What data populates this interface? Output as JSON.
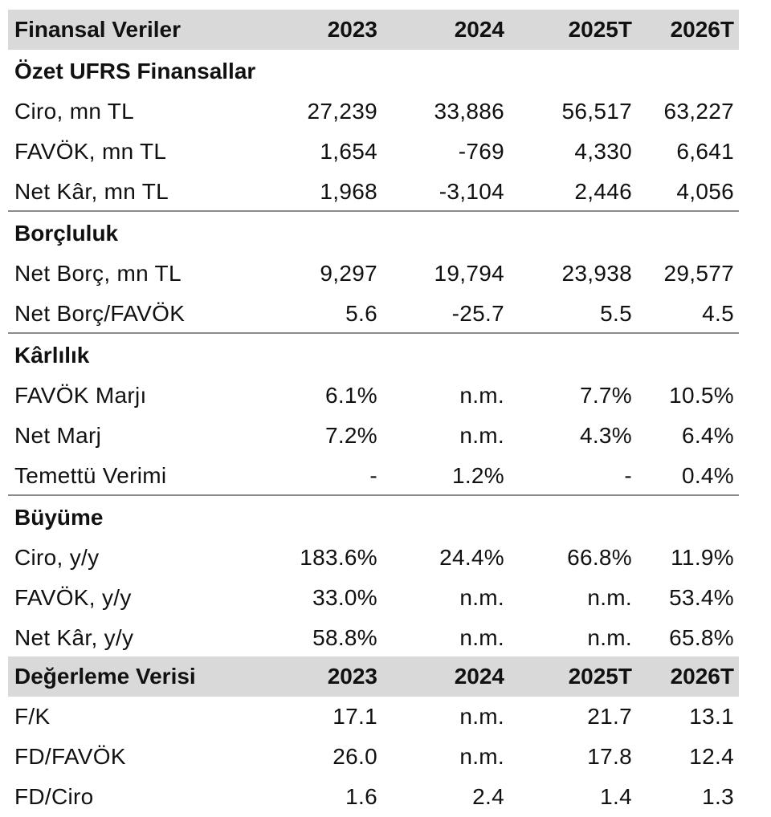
{
  "header": {
    "title": "Finansal Veriler",
    "years": [
      "2023",
      "2024",
      "2025T",
      "2026T"
    ]
  },
  "sections": [
    {
      "title": "Özet UFRS Finansallar",
      "rows": [
        {
          "label": "Ciro, mn TL",
          "values": [
            "27,239",
            "33,886",
            "56,517",
            "63,227"
          ]
        },
        {
          "label": "FAVÖK, mn TL",
          "values": [
            "1,654",
            "-769",
            "4,330",
            "6,641"
          ]
        },
        {
          "label": "Net Kâr, mn TL",
          "values": [
            "1,968",
            "-3,104",
            "2,446",
            "4,056"
          ]
        }
      ]
    },
    {
      "title": "Borçluluk",
      "rows": [
        {
          "label": "Net Borç, mn TL",
          "values": [
            "9,297",
            "19,794",
            "23,938",
            "29,577"
          ]
        },
        {
          "label": "Net Borç/FAVÖK",
          "values": [
            "5.6",
            "-25.7",
            "5.5",
            "4.5"
          ]
        }
      ]
    },
    {
      "title": "Kârlılık",
      "rows": [
        {
          "label": "FAVÖK Marjı",
          "values": [
            "6.1%",
            "n.m.",
            "7.7%",
            "10.5%"
          ]
        },
        {
          "label": "Net Marj",
          "values": [
            "7.2%",
            "n.m.",
            "4.3%",
            "6.4%"
          ]
        },
        {
          "label": "Temettü Verimi",
          "values": [
            "-",
            "1.2%",
            "-",
            "0.4%"
          ]
        }
      ]
    },
    {
      "title": "Büyüme",
      "rows": [
        {
          "label": "Ciro, y/y",
          "values": [
            "183.6%",
            "24.4%",
            "66.8%",
            "11.9%"
          ]
        },
        {
          "label": "FAVÖK, y/y",
          "values": [
            "33.0%",
            "n.m.",
            "n.m.",
            "53.4%"
          ]
        },
        {
          "label": "Net Kâr, y/y",
          "values": [
            "58.8%",
            "n.m.",
            "n.m.",
            "65.8%"
          ]
        }
      ]
    }
  ],
  "valuation": {
    "title": "Değerleme Verisi",
    "years": [
      "2023",
      "2024",
      "2025T",
      "2026T"
    ],
    "rows": [
      {
        "label": "F/K",
        "values": [
          "17.1",
          "n.m.",
          "21.7",
          "13.1"
        ]
      },
      {
        "label": "FD/FAVÖK",
        "values": [
          "26.0",
          "n.m.",
          "17.8",
          "12.4"
        ]
      },
      {
        "label": "FD/Ciro",
        "values": [
          "1.6",
          "2.4",
          "1.4",
          "1.3"
        ]
      }
    ]
  },
  "colors": {
    "header_fill": "#d9d9d9",
    "rule": "#8c8c8c",
    "text": "#111111"
  }
}
